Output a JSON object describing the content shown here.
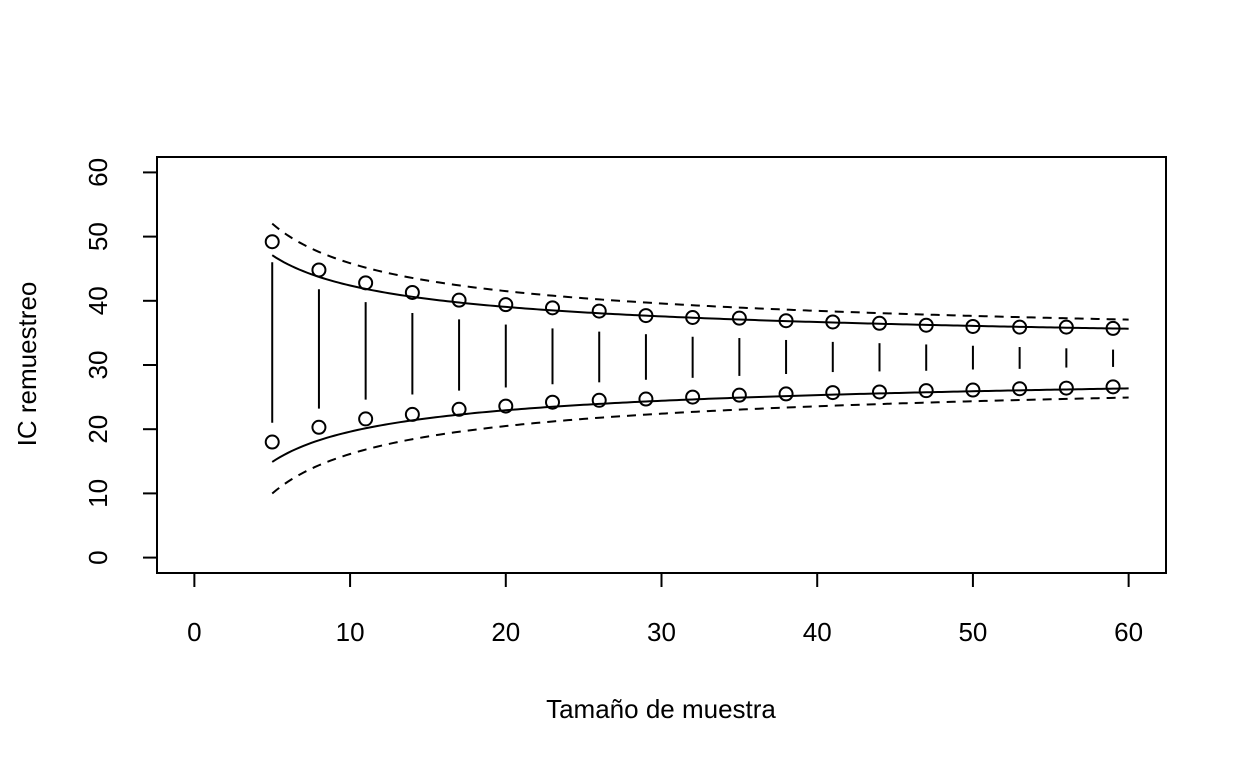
{
  "chart_data": {
    "type": "line",
    "title": "",
    "xlabel": "Tamaño de muestra",
    "ylabel": "IC remuestreo",
    "xlim": [
      -2.4,
      62.4
    ],
    "ylim": [
      -2.4,
      62.4
    ],
    "xticks": [
      0,
      10,
      20,
      30,
      40,
      50,
      60
    ],
    "yticks": [
      0,
      10,
      20,
      30,
      40,
      50,
      60
    ],
    "x": [
      5,
      8,
      11,
      14,
      17,
      20,
      23,
      26,
      29,
      32,
      35,
      38,
      41,
      44,
      47,
      50,
      53,
      56,
      59
    ],
    "series": [
      {
        "kind": "points-upper",
        "values": [
          49.2,
          44.8,
          42.8,
          41.3,
          40.1,
          39.4,
          38.9,
          38.4,
          37.7,
          37.4,
          37.3,
          36.9,
          36.7,
          36.5,
          36.2,
          36.0,
          35.9,
          35.9,
          35.7
        ]
      },
      {
        "kind": "points-lower",
        "values": [
          18.0,
          20.3,
          21.6,
          22.3,
          23.1,
          23.6,
          24.2,
          24.5,
          24.7,
          25.0,
          25.3,
          25.5,
          25.7,
          25.8,
          26.0,
          26.1,
          26.3,
          26.4,
          26.6
        ]
      },
      {
        "kind": "segments",
        "low": [
          21.0,
          23.2,
          24.6,
          25.4,
          26.0,
          26.5,
          27.0,
          27.3,
          27.7,
          28.0,
          28.3,
          28.6,
          28.9,
          29.0,
          29.1,
          29.3,
          29.4,
          29.6,
          29.7
        ],
        "high": [
          46.0,
          41.8,
          39.8,
          38.1,
          37.1,
          36.3,
          35.7,
          35.2,
          34.8,
          34.4,
          34.2,
          33.9,
          33.6,
          33.4,
          33.2,
          33.0,
          32.8,
          32.6,
          32.4
        ]
      }
    ],
    "curves": {
      "center": 31.0,
      "solid_k": 36,
      "dashed_k": 47,
      "x_from": 5,
      "x_to": 60
    }
  }
}
